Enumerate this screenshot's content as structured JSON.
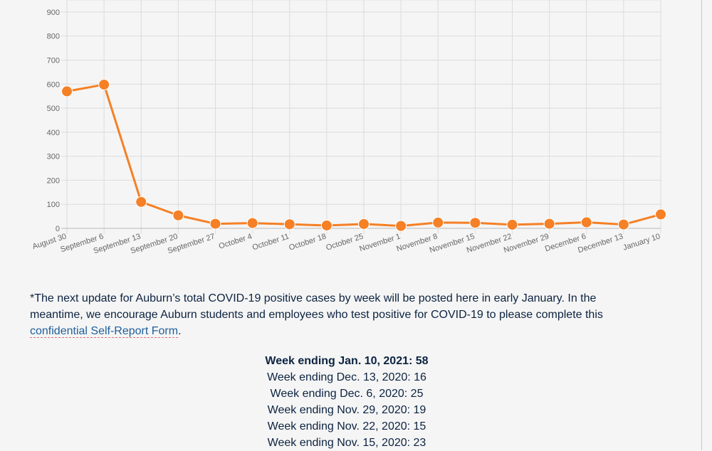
{
  "chart_data": {
    "type": "line",
    "title": "",
    "xlabel": "",
    "ylabel": "",
    "ylim": [
      0,
      950
    ],
    "yticks": [
      0,
      100,
      200,
      300,
      400,
      500,
      600,
      700,
      800,
      900
    ],
    "grid": true,
    "color": "#f58025",
    "categories": [
      "August 30",
      "September 6",
      "September 13",
      "September 20",
      "September 27",
      "October 4",
      "October 11",
      "October 18",
      "October 25",
      "November 1",
      "November 8",
      "November 15",
      "November 22",
      "November 29",
      "December 6",
      "December 13",
      "January 10"
    ],
    "values": [
      570,
      598,
      110,
      54,
      19,
      22,
      17,
      12,
      18,
      10,
      24,
      23,
      15,
      19,
      25,
      16,
      58
    ]
  },
  "note": {
    "text": "*The next update for Auburn’s total COVID-19 positive cases by week will be posted here in early January. In the meantime, we encourage Auburn students and employees who test positive for COVID-19 to please complete this ",
    "link": "confidential Self-Report Form",
    "end": "."
  },
  "weekly_list": [
    {
      "text": "Week ending Jan. 10, 2021: 58",
      "bold": true
    },
    {
      "text": "Week ending Dec. 13, 2020: 16",
      "bold": false
    },
    {
      "text": "Week ending Dec. 6, 2020: 25",
      "bold": false
    },
    {
      "text": "Week ending Nov. 29, 2020: 19",
      "bold": false
    },
    {
      "text": "Week ending Nov. 22, 2020: 15",
      "bold": false
    },
    {
      "text": "Week ending Nov. 15, 2020: 23",
      "bold": false
    }
  ]
}
